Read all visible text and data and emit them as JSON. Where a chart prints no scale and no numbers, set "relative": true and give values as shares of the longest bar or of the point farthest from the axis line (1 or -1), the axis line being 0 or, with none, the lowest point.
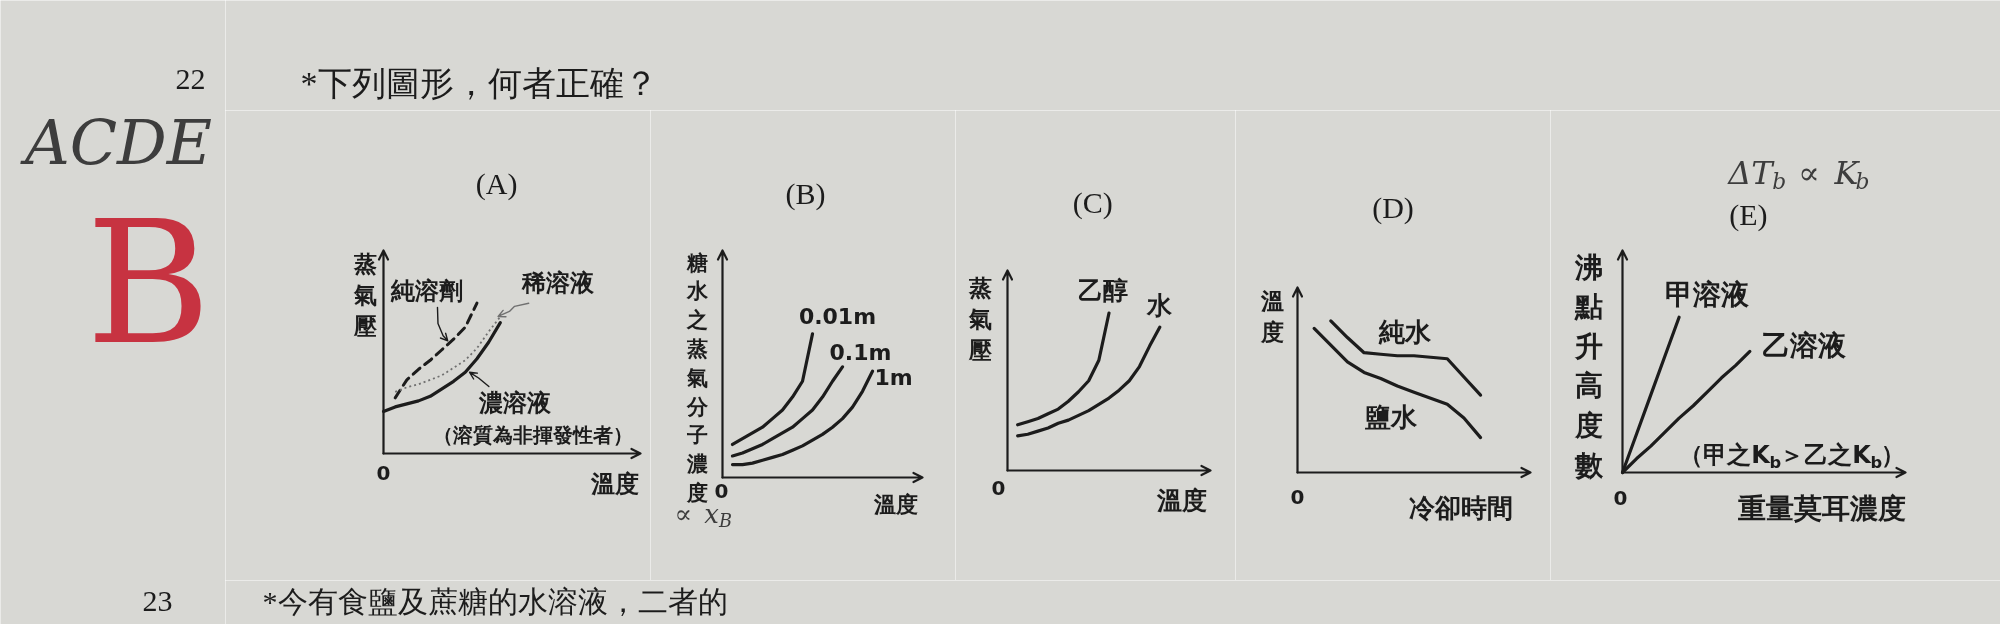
{
  "chart_data": [
    {
      "type": "other",
      "title": "*下列圖形，何者正確？",
      "annotations": [
        "22",
        "ACDE",
        "B"
      ]
    },
    {
      "type": "line",
      "title": "(A)",
      "xlabel": "溫度",
      "ylabel": "蒸氣壓",
      "relative": true,
      "categories": [
        null,
        null,
        null,
        null,
        null,
        null,
        null,
        null,
        null,
        null,
        null,
        null,
        null,
        null,
        null,
        null,
        null,
        null,
        null,
        null,
        null,
        null,
        null
      ],
      "series": [
        {
          "name": "純溶劑",
          "color": "#1c1c1c",
          "line_style": "dashed",
          "values": [
            null,
            0.37,
            0.49,
            0.56,
            0.62,
            0.69,
            0.76,
            0.84,
            1.0,
            null,
            null,
            null,
            null,
            null,
            null,
            null,
            null,
            null,
            null,
            null,
            null,
            null,
            null
          ]
        },
        {
          "name": "稀溶液",
          "color": "#707070",
          "line_style": "dotted",
          "values": [
            null,
            0.41,
            0.44,
            0.46,
            0.49,
            0.52,
            0.57,
            0.62,
            0.7,
            0.81,
            0.91,
            null,
            null,
            null,
            null,
            null,
            null,
            null,
            null,
            null,
            null,
            null,
            null
          ]
        },
        {
          "name": "濃溶液",
          "color": "#1c1c1c",
          "values": [
            0.28,
            0.31,
            0.33,
            0.35,
            0.38,
            0.43,
            0.48,
            0.54,
            0.63,
            0.74,
            0.87,
            null,
            null,
            null,
            null,
            null,
            null,
            null,
            null,
            null,
            null,
            null,
            null
          ]
        }
      ],
      "annotations": [
        "（溶質為非揮發性者）",
        "0"
      ]
    },
    {
      "type": "line",
      "title": "(B)",
      "xlabel": "溫度",
      "ylabel": "糖水之蒸氣分子濃度",
      "relative": true,
      "categories": [
        null,
        null,
        null,
        null,
        null,
        null,
        null,
        null,
        null,
        null,
        null,
        null,
        null,
        null,
        null,
        null,
        null,
        null,
        null,
        null,
        null
      ],
      "series": [
        {
          "name": "0.01m",
          "color": "#1c1c1c",
          "values": [
            null,
            0.23,
            0.27,
            0.31,
            0.35,
            0.41,
            0.47,
            0.56,
            0.67,
            1.0,
            null,
            null,
            null,
            null,
            null,
            null,
            null,
            null,
            null,
            null,
            null
          ]
        },
        {
          "name": "0.1m",
          "color": "#1c1c1c",
          "values": [
            null,
            0.15,
            0.17,
            0.2,
            0.23,
            0.27,
            0.31,
            0.35,
            0.41,
            0.47,
            0.56,
            0.67,
            0.77,
            null,
            null,
            null,
            null,
            null,
            null,
            null,
            null
          ]
        },
        {
          "name": "1m",
          "color": "#1c1c1c",
          "values": [
            null,
            0.09,
            0.09,
            0.1,
            0.12,
            0.14,
            0.16,
            0.19,
            0.22,
            0.26,
            0.3,
            0.35,
            0.41,
            0.49,
            0.6,
            0.74,
            null,
            null,
            null,
            null,
            null
          ]
        }
      ],
      "annotations": [
        "0",
        "∝ x$_{B}$"
      ]
    },
    {
      "type": "line",
      "title": "(C)",
      "xlabel": "溫度",
      "ylabel": "蒸氣壓",
      "relative": true,
      "categories": [
        null,
        null,
        null,
        null,
        null,
        null,
        null,
        null,
        null,
        null,
        null,
        null,
        null,
        null,
        null,
        null,
        null,
        null,
        null,
        null,
        null
      ],
      "series": [
        {
          "name": "乙醇",
          "color": "#1c1c1c",
          "values": [
            null,
            0.29,
            0.31,
            0.33,
            0.36,
            0.39,
            0.44,
            0.5,
            0.57,
            0.7,
            1.0,
            null,
            null,
            null,
            null,
            null,
            null,
            null,
            null,
            null,
            null
          ]
        },
        {
          "name": "水",
          "color": "#1c1c1c",
          "values": [
            null,
            0.22,
            0.23,
            0.25,
            0.27,
            0.3,
            0.32,
            0.35,
            0.38,
            0.42,
            0.46,
            0.51,
            0.57,
            0.66,
            0.79,
            0.91,
            null,
            null,
            null,
            null,
            null
          ]
        }
      ],
      "annotations": [
        "0"
      ]
    },
    {
      "type": "line",
      "title": "(D)",
      "xlabel": "冷卻時間",
      "ylabel": "溫度",
      "relative": true,
      "categories": [
        null,
        null,
        null,
        null,
        null,
        null,
        null,
        null,
        null,
        null,
        null,
        null,
        null,
        null,
        null
      ],
      "series": [
        {
          "name": "純水",
          "color": "#1c1c1c",
          "values": [
            null,
            null,
            1.0,
            0.89,
            0.79,
            0.78,
            0.77,
            0.77,
            0.76,
            0.75,
            0.63,
            0.51,
            null,
            null,
            null
          ]
        },
        {
          "name": "鹽水",
          "color": "#1c1c1c",
          "values": [
            null,
            0.95,
            0.84,
            0.73,
            0.66,
            0.62,
            0.57,
            0.53,
            0.49,
            0.45,
            0.36,
            0.23,
            null,
            null,
            null
          ]
        }
      ],
      "annotations": [
        "0"
      ]
    },
    {
      "type": "line",
      "title": "(E)",
      "xlabel": "重量莫耳濃度",
      "ylabel": "沸點升高度數",
      "relative": true,
      "categories": [
        null,
        null,
        null,
        null,
        null,
        null,
        null,
        null,
        null,
        null,
        null,
        null,
        null,
        null,
        null,
        null,
        null,
        null,
        null,
        null,
        null
      ],
      "series": [
        {
          "name": "甲溶液",
          "color": "#1c1c1c",
          "values": [
            0,
            0.25,
            0.5,
            0.75,
            1.0,
            null,
            null,
            null,
            null,
            null,
            null,
            null,
            null,
            null,
            null,
            null,
            null,
            null,
            null,
            null,
            null
          ]
        },
        {
          "name": "乙溶液",
          "color": "#1c1c1c",
          "values": [
            0,
            0.09,
            0.17,
            0.26,
            0.35,
            0.43,
            0.52,
            0.61,
            0.69,
            0.78,
            null,
            null,
            null,
            null,
            null,
            null,
            null,
            null,
            null,
            null,
            null
          ]
        }
      ],
      "annotations": [
        "（甲之K$_{b}$＞乙之K$_{b}$）",
        "0",
        "ΔT$_{b}$ ∝ K$_{b}$"
      ]
    },
    {
      "type": "other",
      "title": "*今有食鹽及蔗糖的水溶液，二者的",
      "annotations": [
        "23"
      ]
    }
  ]
}
